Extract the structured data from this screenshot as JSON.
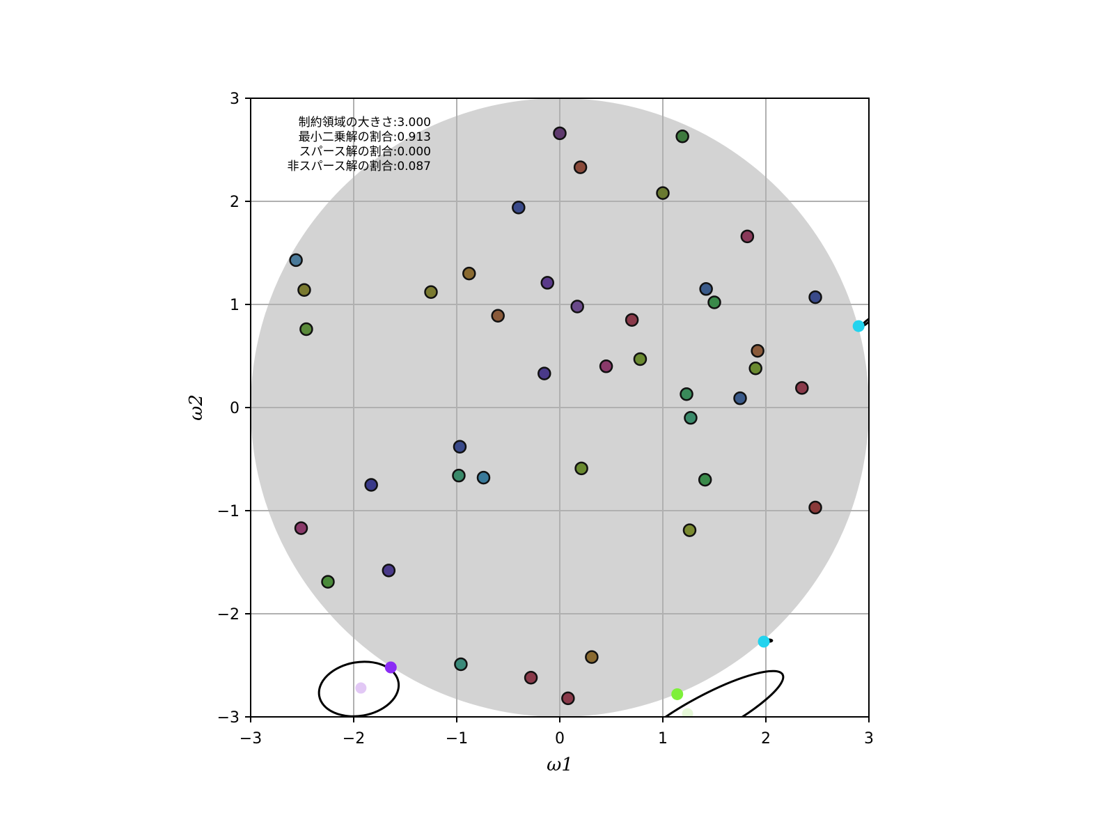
{
  "chart_data": {
    "type": "scatter",
    "xlabel": "ω1",
    "ylabel": "ω2",
    "xlim": [
      -3,
      3
    ],
    "ylim": [
      -3,
      3
    ],
    "xticks": [
      -3,
      -2,
      -1,
      0,
      1,
      2,
      3
    ],
    "yticks": [
      -3,
      -2,
      -1,
      0,
      1,
      2,
      3
    ],
    "xtick_labels": [
      "−3",
      "−2",
      "−1",
      "0",
      "1",
      "2",
      "3"
    ],
    "ytick_labels": [
      "−3",
      "−2",
      "−1",
      "0",
      "1",
      "2",
      "3"
    ],
    "grid": true,
    "constraint_region": {
      "shape": "circle",
      "center": [
        0,
        0
      ],
      "radius": 3.0,
      "color": "#d3d3d3"
    },
    "annotation_lines": [
      "制約領域の大きさ:3.000",
      "最小二乗解の割合:0.913",
      "スパース解の割合:0.000",
      "非スパース解の割合:0.087"
    ],
    "points": [
      {
        "x": 0.0,
        "y": 2.66,
        "color": "#5f3a6e"
      },
      {
        "x": 1.19,
        "y": 2.63,
        "color": "#3e7a3e"
      },
      {
        "x": 0.2,
        "y": 2.33,
        "color": "#8a4a3a"
      },
      {
        "x": -0.4,
        "y": 1.94,
        "color": "#3a4a8a"
      },
      {
        "x": 1.0,
        "y": 2.08,
        "color": "#6a7a30"
      },
      {
        "x": 1.82,
        "y": 1.66,
        "color": "#8a3a5a"
      },
      {
        "x": -2.56,
        "y": 1.43,
        "color": "#4a7a9a"
      },
      {
        "x": -2.48,
        "y": 1.14,
        "color": "#7a7a30"
      },
      {
        "x": -1.25,
        "y": 1.12,
        "color": "#7a7a30"
      },
      {
        "x": -0.88,
        "y": 1.3,
        "color": "#8a6a30"
      },
      {
        "x": -0.12,
        "y": 1.21,
        "color": "#5a3a8a"
      },
      {
        "x": 0.17,
        "y": 0.98,
        "color": "#6a4a8a"
      },
      {
        "x": 1.42,
        "y": 1.15,
        "color": "#3a5a8a"
      },
      {
        "x": 1.5,
        "y": 1.02,
        "color": "#3a8a4a"
      },
      {
        "x": 2.48,
        "y": 1.07,
        "color": "#3a4a8a"
      },
      {
        "x": -2.46,
        "y": 0.76,
        "color": "#5a8a3a"
      },
      {
        "x": -0.6,
        "y": 0.89,
        "color": "#8a5a3a"
      },
      {
        "x": 0.7,
        "y": 0.85,
        "color": "#8a3a4a"
      },
      {
        "x": 1.92,
        "y": 0.55,
        "color": "#8a5a3a"
      },
      {
        "x": 0.45,
        "y": 0.4,
        "color": "#8a3a6a"
      },
      {
        "x": 0.78,
        "y": 0.47,
        "color": "#6a8a30"
      },
      {
        "x": 1.9,
        "y": 0.38,
        "color": "#6a8a30"
      },
      {
        "x": -0.15,
        "y": 0.33,
        "color": "#4a3a8a"
      },
      {
        "x": 2.35,
        "y": 0.19,
        "color": "#8a3a4a"
      },
      {
        "x": 1.23,
        "y": 0.13,
        "color": "#3a8a5a"
      },
      {
        "x": 1.75,
        "y": 0.09,
        "color": "#3a5a8a"
      },
      {
        "x": 1.27,
        "y": -0.1,
        "color": "#3a8a6a"
      },
      {
        "x": -0.97,
        "y": -0.38,
        "color": "#3a4a8a"
      },
      {
        "x": -0.98,
        "y": -0.66,
        "color": "#3a8a6a"
      },
      {
        "x": -0.74,
        "y": -0.68,
        "color": "#3a7a9a"
      },
      {
        "x": 0.21,
        "y": -0.59,
        "color": "#6a8a30"
      },
      {
        "x": 1.41,
        "y": -0.7,
        "color": "#3a8a4a"
      },
      {
        "x": -1.83,
        "y": -0.75,
        "color": "#3a3a8a"
      },
      {
        "x": 2.48,
        "y": -0.97,
        "color": "#8a3a3a"
      },
      {
        "x": -2.51,
        "y": -1.17,
        "color": "#8a3a6a"
      },
      {
        "x": 1.26,
        "y": -1.19,
        "color": "#7a8a30"
      },
      {
        "x": -1.66,
        "y": -1.58,
        "color": "#4a3a8a"
      },
      {
        "x": -2.25,
        "y": -1.69,
        "color": "#4a8a3a"
      },
      {
        "x": -0.96,
        "y": -2.49,
        "color": "#3a8a7a"
      },
      {
        "x": 0.31,
        "y": -2.42,
        "color": "#8a6a30"
      },
      {
        "x": -0.28,
        "y": -2.62,
        "color": "#8a3a4a"
      },
      {
        "x": 0.08,
        "y": -2.82,
        "color": "#8a3a4a"
      }
    ],
    "solution_points": [
      {
        "x": 2.9,
        "y": 0.79,
        "color": "#22d3ee"
      },
      {
        "x": 1.98,
        "y": -2.27,
        "color": "#22d3ee"
      },
      {
        "x": -1.64,
        "y": -2.52,
        "color": "#8b2cf5"
      },
      {
        "x": 1.14,
        "y": -2.78,
        "color": "#7ef03a"
      }
    ],
    "ls_points": [
      {
        "x": -1.93,
        "y": -2.72,
        "color": "#e2c8f5"
      },
      {
        "x": 1.24,
        "y": -2.97,
        "color": "#e6f8d8"
      }
    ],
    "contours": [
      {
        "cx": -1.95,
        "cy": -2.73,
        "rx": 0.39,
        "ry": 0.26,
        "angle": 10,
        "color": "#000000"
      },
      {
        "cx": 1.43,
        "cy": -2.98,
        "rx": 0.83,
        "ry": 0.19,
        "angle": 28,
        "color": "#000000"
      },
      {
        "cx": 2.01,
        "cy": -2.26,
        "rx": 0.05,
        "ry": 0.012,
        "angle": 0,
        "color": "#000000"
      },
      {
        "cx": 2.98,
        "cy": 0.83,
        "rx": 0.06,
        "ry": 0.012,
        "angle": 40,
        "color": "#000000"
      }
    ]
  }
}
